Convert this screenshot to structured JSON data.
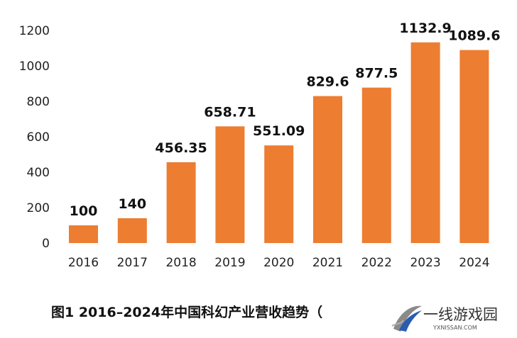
{
  "chart_data": {
    "type": "bar",
    "categories": [
      "2016",
      "2017",
      "2018",
      "2019",
      "2020",
      "2021",
      "2022",
      "2023",
      "2024"
    ],
    "values": [
      100,
      140,
      456.35,
      658.71,
      551.09,
      829.6,
      877.5,
      1132.9,
      1089.6
    ],
    "value_labels": [
      "100",
      "140",
      "456.35",
      "658.71",
      "551.09",
      "829.6",
      "877.5",
      "1132.9",
      "1089.6"
    ],
    "yticks": [
      "0",
      "200",
      "400",
      "600",
      "800",
      "1000",
      "1200"
    ],
    "ylim": [
      0,
      1200
    ],
    "grid": false,
    "bar_color": "#ED7D31"
  },
  "caption": "图1  2016–2024年中国科幻产业营收趋势（",
  "watermark": {
    "text": "一线游戏园",
    "subtext": "YXNISSAN.COM"
  }
}
